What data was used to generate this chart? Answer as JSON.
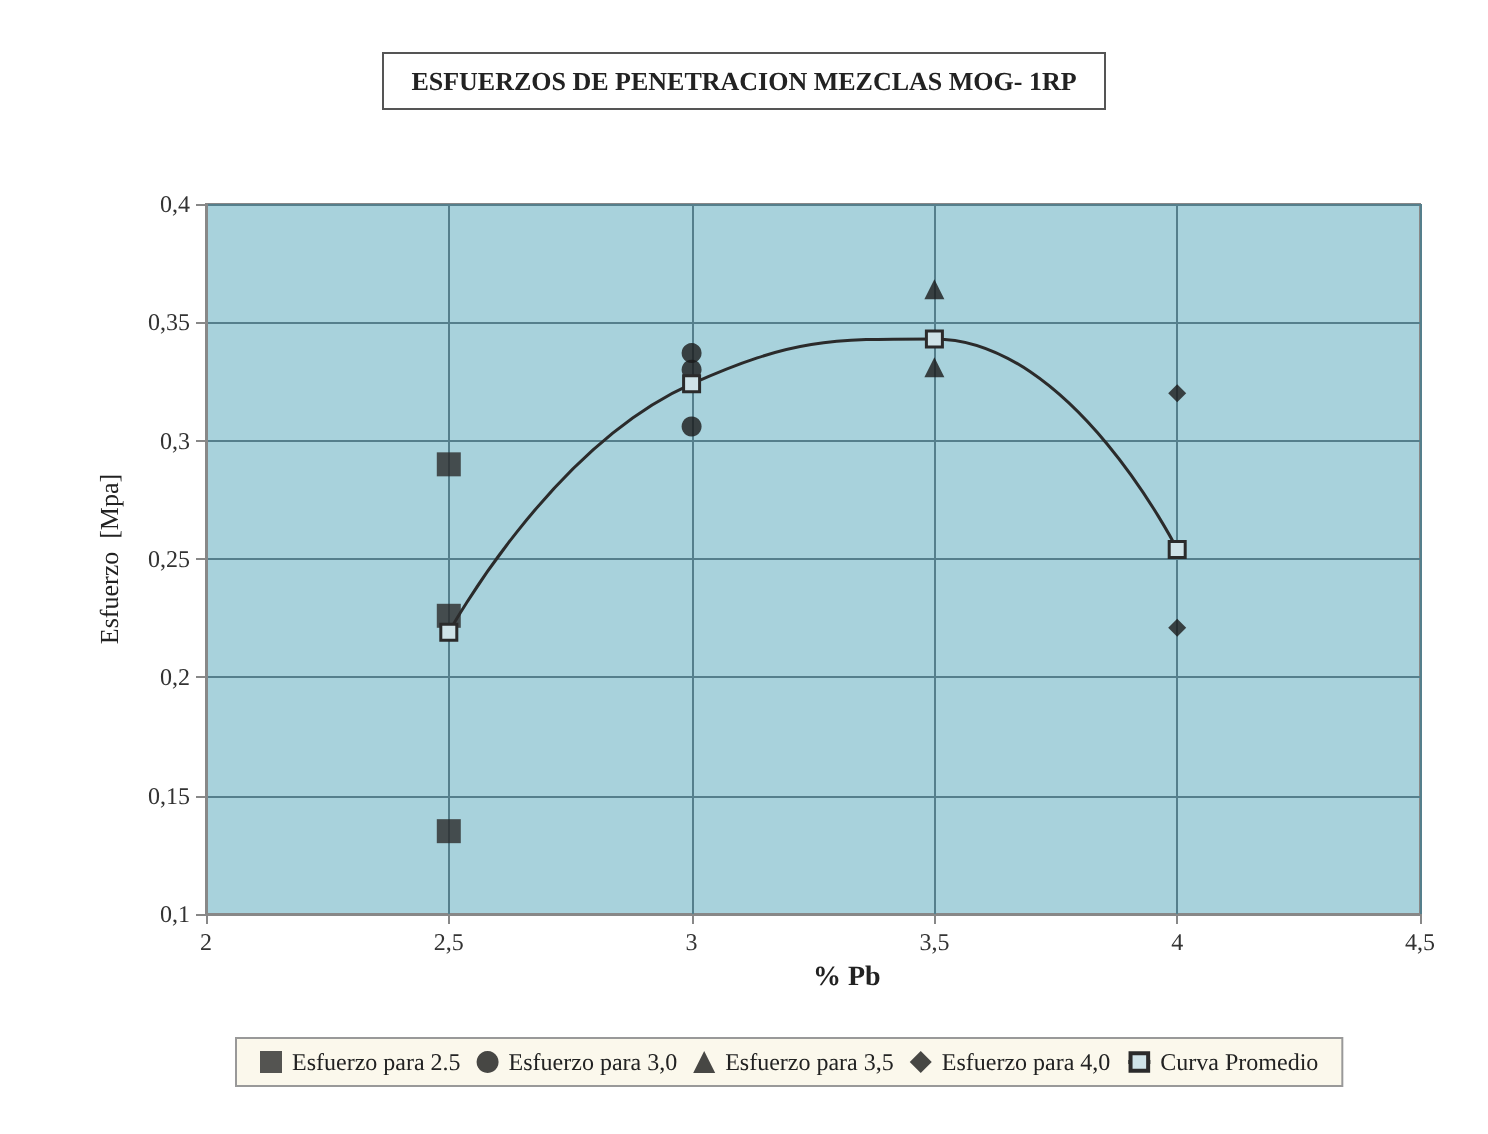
{
  "chart_data": {
    "type": "scatter",
    "title": "ESFUERZOS DE PENETRACION MEZCLAS MOG- 1RP",
    "xlabel": "% Pb",
    "ylabel": "Esfuerzo  [Mpa]",
    "xlim": [
      2,
      4.5
    ],
    "xticks": [
      2,
      {
        "value": 2.5,
        "label": "2,5"
      },
      3,
      {
        "value": 3.5,
        "label": "3,5"
      },
      4,
      {
        "value": 4.5,
        "label": "4,5"
      }
    ],
    "ylim": [
      0.1,
      0.4
    ],
    "yticks": [
      {
        "value": 0.1,
        "label": "0,1"
      },
      {
        "value": 0.15,
        "label": "0,15"
      },
      {
        "value": 0.2,
        "label": "0,2"
      },
      {
        "value": 0.25,
        "label": "0,25"
      },
      {
        "value": 0.3,
        "label": "0,3"
      },
      {
        "value": 0.35,
        "label": "0,35"
      },
      {
        "value": 0.4,
        "label": "0,4"
      }
    ],
    "grid": true,
    "legend": "bottom",
    "series": [
      {
        "name": "Esfuerzo para 2.5",
        "color": "#2b2b2b",
        "marker": "square",
        "x": [
          2.5,
          2.5,
          2.5
        ],
        "values": [
          0.29,
          0.226,
          0.135
        ]
      },
      {
        "name": "Esfuerzo para 3,0",
        "color": "#1a1a1a",
        "marker": "circle",
        "x": [
          3,
          3,
          3
        ],
        "values": [
          0.337,
          0.33,
          0.306
        ]
      },
      {
        "name": "Esfuerzo para 3,5",
        "color": "#1a1a1a",
        "marker": "triangle",
        "x": [
          3.5,
          3.5
        ],
        "values": [
          0.364,
          0.331
        ]
      },
      {
        "name": "Esfuerzo para 4,0",
        "color": "#1a1a1a",
        "marker": "diamond",
        "x": [
          4,
          4
        ],
        "values": [
          0.32,
          0.221
        ]
      },
      {
        "name": "Curva Promedio",
        "type": "line",
        "color": "#2b2b2b",
        "marker": "square",
        "line_style": "solid",
        "x": [
          2.5,
          3,
          3.5,
          4
        ],
        "values": [
          0.219,
          0.324,
          0.343,
          0.254
        ]
      }
    ]
  }
}
